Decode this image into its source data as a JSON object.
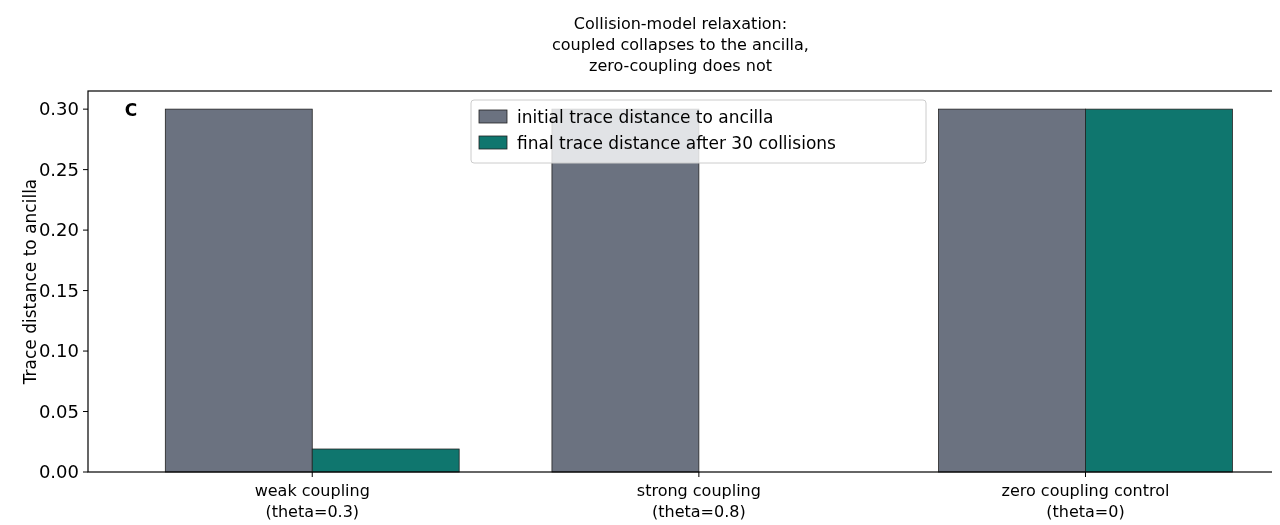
{
  "chart_data": {
    "type": "bar",
    "title": "Collision-model relaxation:\ncoupled collapses to the ancilla,\nzero-coupling does not",
    "ylabel": "Trace distance to ancilla",
    "categories": [
      "weak coupling\n(theta=0.3)",
      "strong coupling\n(theta=0.8)",
      "zero coupling control\n(theta=0)"
    ],
    "series": [
      {
        "name": "initial trace distance to ancilla",
        "color": "#6b7280",
        "values": [
          0.3,
          0.3,
          0.3
        ]
      },
      {
        "name": "final trace distance after 30 collisions",
        "color": "#0f766e",
        "values": [
          0.019,
          0.0,
          0.3
        ]
      }
    ],
    "ylim": [
      0,
      0.315
    ],
    "yticks": [
      {
        "value": 0,
        "label": "0.00"
      },
      {
        "value": 0.05,
        "label": "0.05"
      },
      {
        "value": 0.1,
        "label": "0.10"
      },
      {
        "value": 0.15,
        "label": "0.15"
      },
      {
        "value": 0.2,
        "label": "0.20"
      },
      {
        "value": 0.25,
        "label": "0.25"
      },
      {
        "value": 0.3,
        "label": "0.30"
      }
    ],
    "legend": "top",
    "grid": false,
    "annotations": [
      "C"
    ]
  }
}
